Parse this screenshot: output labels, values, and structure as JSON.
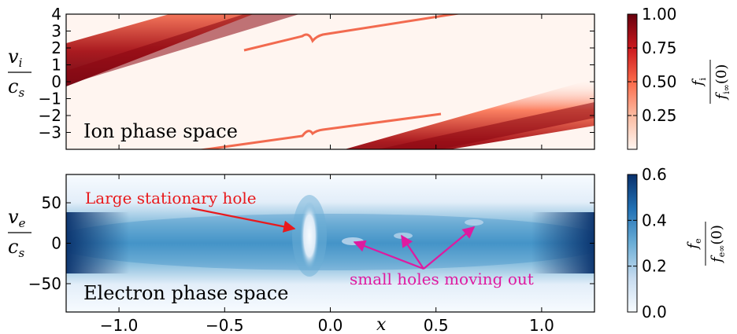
{
  "chart_data": [
    {
      "type": "heatmap",
      "panel": "top",
      "title": "Ion phase space",
      "ylabel_num": "v",
      "ylabel_num_sub": "i",
      "ylabel_den": "c",
      "ylabel_den_sub": "s",
      "xlim": [
        -1.25,
        1.25
      ],
      "ylim": [
        -4,
        4
      ],
      "yticks": [
        "4",
        "3",
        "2",
        "1",
        "0",
        "−1",
        "−2",
        "−3"
      ],
      "ytick_values": [
        4,
        3,
        2,
        1,
        0,
        -1,
        -2,
        -3
      ],
      "xtick_values": [
        -1.0,
        -0.5,
        0.0,
        0.5,
        1.0
      ],
      "colormap": "Reds",
      "colorbar": {
        "label_num": "f",
        "label_num_sub": "i",
        "label_den": "f",
        "label_den_sub": "i∞",
        "label_den_arg": "(0)",
        "ticks": [
          "1.00",
          "0.75",
          "0.50",
          "0.25"
        ],
        "tick_values": [
          1.0,
          0.75,
          0.5,
          0.25
        ],
        "range": [
          0,
          1.0
        ]
      }
    },
    {
      "type": "heatmap",
      "panel": "bottom",
      "title": "Electron phase space",
      "ylabel_num": "v",
      "ylabel_num_sub": "e",
      "ylabel_den": "c",
      "ylabel_den_sub": "s",
      "xlabel": "x",
      "xlim": [
        -1.25,
        1.25
      ],
      "ylim": [
        -85,
        85
      ],
      "yticks": [
        "50",
        "0",
        "−50"
      ],
      "ytick_values": [
        50,
        0,
        -50
      ],
      "xticks": [
        "−1.0",
        "−0.5",
        "0.0",
        "0.5",
        "1.0"
      ],
      "xtick_values": [
        -1.0,
        -0.5,
        0.0,
        0.5,
        1.0
      ],
      "colormap": "Blues",
      "colorbar": {
        "label_num": "f",
        "label_num_sub": "e",
        "label_den": "f",
        "label_den_sub": "e∞",
        "label_den_arg": "(0)",
        "ticks": [
          "0.6",
          "0.4",
          "0.2",
          "0.0"
        ],
        "tick_values": [
          0.6,
          0.4,
          0.2,
          0.0
        ],
        "range": [
          0,
          0.6
        ]
      },
      "annotations": [
        {
          "text": "Large stationary hole",
          "color": "#e8191c",
          "target": [
            -0.15,
            10
          ]
        },
        {
          "text": "small holes moving out",
          "color": "#de1aa0",
          "targets": [
            [
              0.13,
              0
            ],
            [
              0.32,
              5
            ],
            [
              0.67,
              15
            ]
          ]
        }
      ]
    }
  ]
}
